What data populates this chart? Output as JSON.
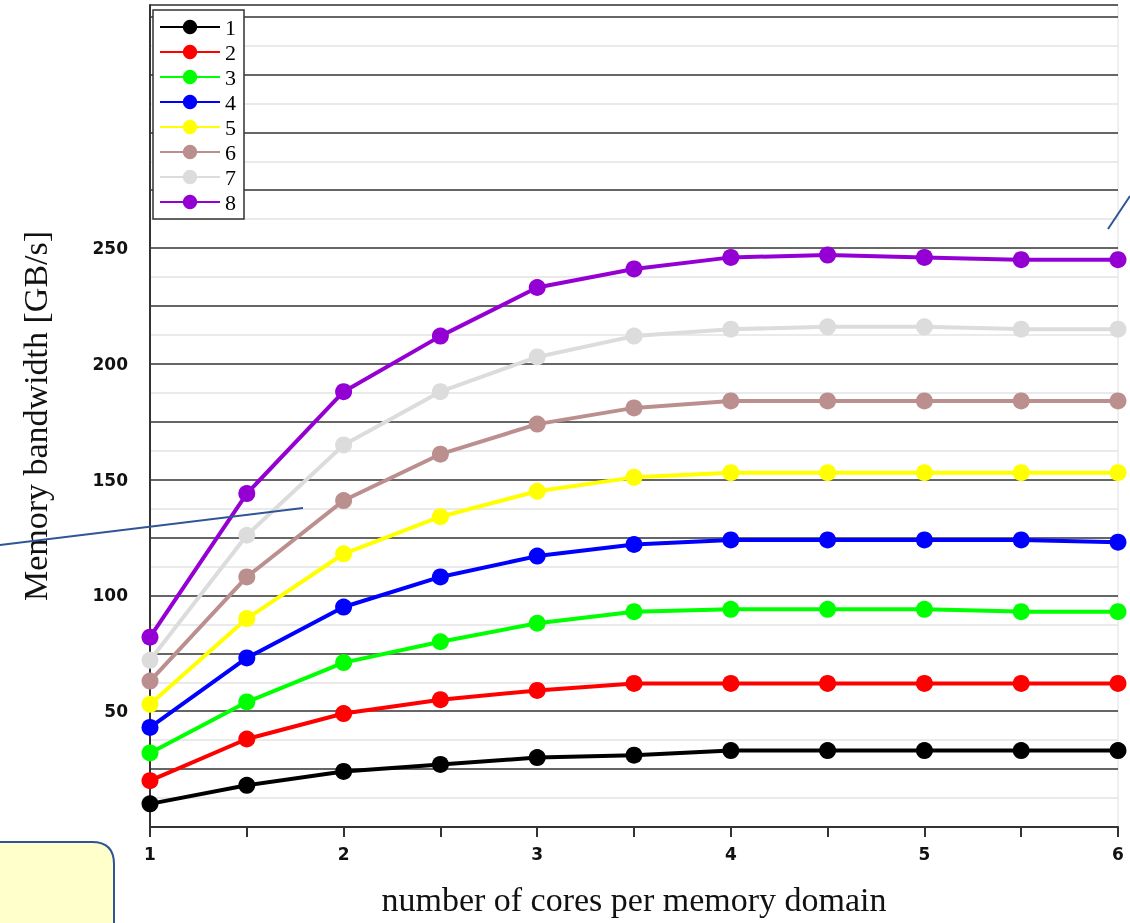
{
  "chart_data": {
    "type": "line",
    "xlabel": "number of cores per memory domain",
    "ylabel": "Memory bandwidth [GB/s]",
    "x": [
      1,
      1.5,
      2,
      2.5,
      3,
      3.5,
      4,
      4.5,
      5,
      5.5,
      6
    ],
    "series": [
      {
        "name": "1",
        "color": "#000000",
        "values": [
          10,
          18,
          24,
          27,
          30,
          31,
          33,
          33,
          33,
          33,
          33
        ]
      },
      {
        "name": "2",
        "color": "#ff0000",
        "values": [
          20,
          38,
          49,
          55,
          59,
          62,
          62,
          62,
          62,
          62,
          62
        ]
      },
      {
        "name": "3",
        "color": "#00ff00",
        "values": [
          32,
          54,
          71,
          80,
          88,
          93,
          94,
          94,
          94,
          93,
          93
        ]
      },
      {
        "name": "4",
        "color": "#0000ff",
        "values": [
          43,
          73,
          95,
          108,
          117,
          122,
          124,
          124,
          124,
          124,
          123
        ]
      },
      {
        "name": "5",
        "color": "#ffff00",
        "values": [
          53,
          90,
          118,
          134,
          145,
          151,
          153,
          153,
          153,
          153,
          153
        ]
      },
      {
        "name": "6",
        "color": "#bc8f8f",
        "values": [
          63,
          108,
          141,
          161,
          174,
          181,
          184,
          184,
          184,
          184,
          184
        ]
      },
      {
        "name": "7",
        "color": "#dcdcdc",
        "values": [
          72,
          126,
          165,
          188,
          203,
          212,
          215,
          216,
          216,
          215,
          215
        ]
      },
      {
        "name": "8",
        "color": "#9400d3",
        "values": [
          82,
          144,
          188,
          212,
          233,
          241,
          246,
          247,
          246,
          245,
          245
        ]
      }
    ],
    "xlim": [
      1,
      6
    ],
    "xticks": [
      1,
      {
        "value": 1.5,
        "label": null
      },
      2,
      {
        "value": 2.5,
        "label": null
      },
      3,
      {
        "value": 3.5,
        "label": null
      },
      4,
      {
        "value": 4.5,
        "label": null
      },
      5,
      {
        "value": 5.5,
        "label": null
      },
      6
    ],
    "ylim": [
      0,
      355
    ],
    "yticks": [
      {
        "value": 0,
        "label": null
      },
      {
        "value": 25,
        "label": null
      },
      50,
      {
        "value": 75,
        "label": null
      },
      100,
      {
        "value": 125,
        "label": null
      },
      150,
      {
        "value": 175,
        "label": null
      },
      200,
      {
        "value": 225,
        "label": null
      },
      250,
      {
        "value": 275,
        "label": null
      },
      {
        "value": 300,
        "label": null
      },
      {
        "value": 325,
        "label": null
      },
      {
        "value": 350,
        "label": null
      }
    ],
    "grid": "y",
    "legend": "top left",
    "marker": "circle",
    "line_style": "solid"
  }
}
